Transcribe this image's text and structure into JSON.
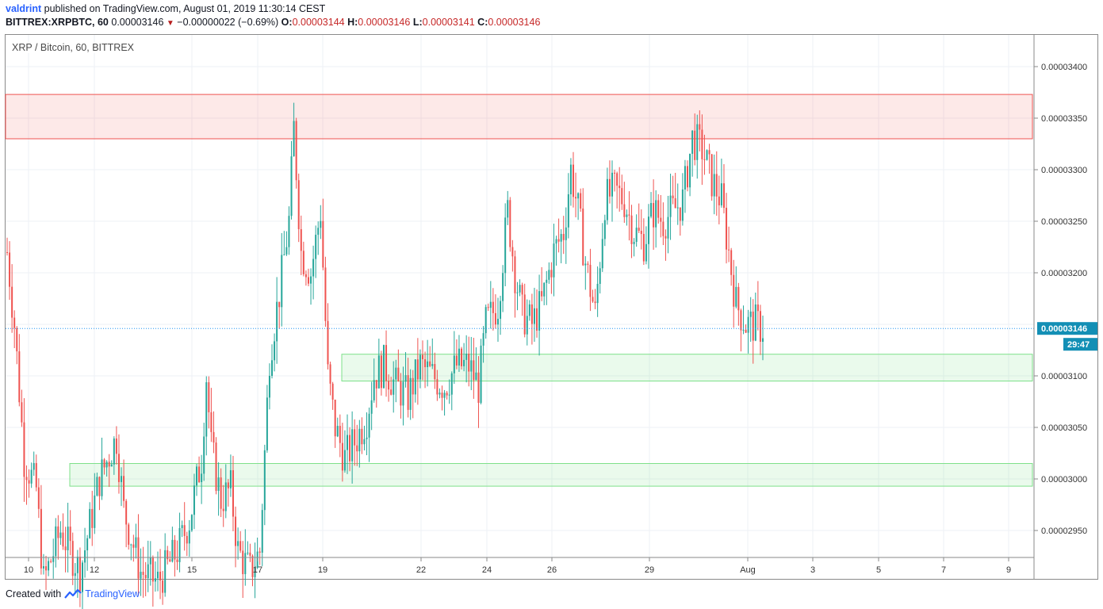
{
  "header": {
    "author": "valdrint",
    "published_text": "published on TradingView.com, August 01, 2019 11:30:14 CEST",
    "symbol": "BITTREX:XRPBTC, 60",
    "last": "0.00003146",
    "change_arrow": "▼",
    "change": "−0.00000022 (−0.69%)",
    "o_label": "O:",
    "o": "0.00003144",
    "h_label": "H:",
    "h": "0.00003146",
    "l_label": "L:",
    "l": "0.00003141",
    "c_label": "C:",
    "c": "0.00003146"
  },
  "chart_title": "XRP / Bitcoin, 60, BITTREX",
  "footer": {
    "prefix": "Created with",
    "brand": "TradingView"
  },
  "colors": {
    "up": "#26a69a",
    "down": "#ef5350",
    "resistance": "#ef5350",
    "support": "#7ee08a",
    "last_price": "#2196f3"
  },
  "chart_data": {
    "type": "candlestick",
    "title": "XRP / Bitcoin, 60, BITTREX",
    "x_ticks": [
      "10",
      "12",
      "15",
      "17",
      "19",
      "22",
      "24",
      "26",
      "29",
      "Aug",
      "3",
      "5",
      "7",
      "9"
    ],
    "y_ticks": [
      "0.00003400",
      "0.00003350",
      "0.00003300",
      "0.00003250",
      "0.00003200",
      "0.00003100",
      "0.00003050",
      "0.00003000",
      "0.00002950"
    ],
    "ylim": [
      2.92e-05,
      3.44e-05
    ],
    "last_price_label": "0.00003146",
    "countdown_label": "29:47",
    "zones": [
      {
        "name": "resistance",
        "x_start": "9",
        "x_end": "9",
        "y_low": 3.33e-05,
        "y_high": 3.373e-05
      },
      {
        "name": "support",
        "x_start": "19",
        "x_end": "9",
        "y_low": 3.095e-05,
        "y_high": 3.121e-05
      },
      {
        "name": "support",
        "x_start": "10",
        "x_end": "9",
        "y_low": 2.993e-05,
        "y_high": 3.015e-05
      }
    ],
    "price_path": [
      [
        0,
        3.22e-05
      ],
      [
        3,
        3.15e-05
      ],
      [
        7,
        3.02e-05
      ],
      [
        12,
        2.99e-05
      ],
      [
        15,
        2.9e-05
      ],
      [
        22,
        2.95e-05
      ],
      [
        30,
        2.91e-05
      ],
      [
        38,
        3e-05
      ],
      [
        45,
        3.04e-05
      ],
      [
        48,
        2.97e-05
      ],
      [
        55,
        2.91e-05
      ],
      [
        62,
        2.9e-05
      ],
      [
        70,
        2.93e-05
      ],
      [
        75,
        2.96e-05
      ],
      [
        80,
        3.02e-05
      ],
      [
        82,
        3.1e-05
      ],
      [
        84,
        3.03e-05
      ],
      [
        88,
        2.98e-05
      ],
      [
        92,
        2.99e-05
      ],
      [
        95,
        2.93e-05
      ],
      [
        100,
        2.91e-05
      ],
      [
        104,
        2.93e-05
      ],
      [
        108,
        3.12e-05
      ],
      [
        112,
        3.18e-05
      ],
      [
        116,
        3.25e-05
      ],
      [
        118,
        3.34e-05
      ],
      [
        121,
        3.22e-05
      ],
      [
        125,
        3.2e-05
      ],
      [
        129,
        3.26e-05
      ],
      [
        132,
        3.1e-05
      ],
      [
        135,
        3.05e-05
      ],
      [
        139,
        3.02e-05
      ],
      [
        144,
        3.04e-05
      ],
      [
        148,
        3.06e-05
      ],
      [
        151,
        3.1e-05
      ],
      [
        155,
        3.11e-05
      ],
      [
        160,
        3.09e-05
      ],
      [
        165,
        3.08e-05
      ],
      [
        170,
        3.11e-05
      ],
      [
        175,
        3.1e-05
      ],
      [
        180,
        3.09e-05
      ],
      [
        185,
        3.11e-05
      ],
      [
        190,
        3.11e-05
      ],
      [
        194,
        3.09e-05
      ],
      [
        197,
        3.15e-05
      ],
      [
        202,
        3.17e-05
      ],
      [
        206,
        3.26e-05
      ],
      [
        209,
        3.2e-05
      ],
      [
        212,
        3.16e-05
      ],
      [
        216,
        3.15e-05
      ],
      [
        220,
        3.17e-05
      ],
      [
        225,
        3.22e-05
      ],
      [
        229,
        3.24e-05
      ],
      [
        232,
        3.3e-05
      ],
      [
        235,
        3.26e-05
      ],
      [
        238,
        3.21e-05
      ],
      [
        242,
        3.16e-05
      ],
      [
        246,
        3.27e-05
      ],
      [
        250,
        3.28e-05
      ],
      [
        254,
        3.27e-05
      ],
      [
        258,
        3.24e-05
      ],
      [
        262,
        3.23e-05
      ],
      [
        266,
        3.26e-05
      ],
      [
        270,
        3.25e-05
      ],
      [
        274,
        3.26e-05
      ],
      [
        278,
        3.27e-05
      ],
      [
        282,
        3.33e-05
      ],
      [
        286,
        3.32e-05
      ],
      [
        290,
        3.29e-05
      ],
      [
        294,
        3.27e-05
      ],
      [
        297,
        3.22e-05
      ],
      [
        300,
        3.17e-05
      ],
      [
        304,
        3.15e-05
      ],
      [
        308,
        3.15e-05
      ],
      [
        311,
        3.146e-05
      ]
    ]
  }
}
